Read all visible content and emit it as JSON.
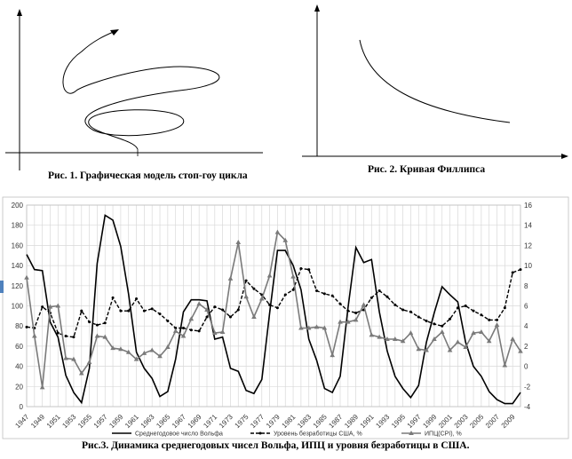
{
  "fig1": {
    "caption": "Рис. 1. Графическая модель стоп-гоу цикла"
  },
  "fig2": {
    "caption": "Рис. 2. Кривая Филлипса"
  },
  "fig3": {
    "caption": "Рис.3. Динамика среднегодовых чисел Вольфа, ИПЦ и уровня безработицы в США."
  },
  "chart_data": [
    {
      "type": "diagram",
      "title": "",
      "description_visible": "spiral curve on x/y axes"
    },
    {
      "type": "line",
      "title": "",
      "shape": "decreasing convex curve on x/y axes"
    },
    {
      "type": "line",
      "title": "",
      "x": [
        1947,
        1948,
        1949,
        1950,
        1951,
        1952,
        1953,
        1954,
        1955,
        1956,
        1957,
        1958,
        1959,
        1960,
        1961,
        1962,
        1963,
        1964,
        1965,
        1966,
        1967,
        1968,
        1969,
        1970,
        1971,
        1972,
        1973,
        1974,
        1975,
        1976,
        1977,
        1978,
        1979,
        1980,
        1981,
        1982,
        1983,
        1984,
        1985,
        1986,
        1987,
        1988,
        1989,
        1990,
        1991,
        1992,
        1993,
        1994,
        1995,
        1996,
        1997,
        1998,
        1999,
        2000,
        2001,
        2002,
        2003,
        2004,
        2005,
        2006,
        2007,
        2008,
        2009,
        2010
      ],
      "x_tick_labels": [
        "1947",
        "1949",
        "1951",
        "1953",
        "1955",
        "1957",
        "1959",
        "1961",
        "1963",
        "1965",
        "1967",
        "1969",
        "1971",
        "1973",
        "1975",
        "1977",
        "1979",
        "1981",
        "1983",
        "1985",
        "1987",
        "1989",
        "1991",
        "1993",
        "1995",
        "1997",
        "1999",
        "2001",
        "2003",
        "2005",
        "2007",
        "2009"
      ],
      "y_left": {
        "min": 0,
        "max": 200,
        "ticks": [
          "0",
          "20",
          "40",
          "60",
          "80",
          "100",
          "120",
          "140",
          "160",
          "180",
          "200"
        ]
      },
      "y_right": {
        "min": -4,
        "max": 16,
        "ticks": [
          "-4",
          "-2",
          "0",
          "2",
          "4",
          "6",
          "8",
          "10",
          "12",
          "14",
          "16"
        ]
      },
      "grid": true,
      "legend_position": "bottom",
      "series": [
        {
          "name": "Среднегодовое число Вольфа",
          "axis": "left",
          "style": "solid-black",
          "values": [
            151,
            136,
            135,
            84,
            69,
            31,
            14,
            4,
            38,
            142,
            190,
            185,
            159,
            112,
            54,
            38,
            28,
            10,
            15,
            47,
            94,
            106,
            106,
            105,
            67,
            69,
            38,
            35,
            16,
            13,
            27,
            93,
            155,
            155,
            140,
            116,
            67,
            46,
            18,
            14,
            30,
            98,
            158,
            143,
            146,
            94,
            55,
            30,
            18,
            9,
            21,
            64,
            93,
            119,
            111,
            104,
            64,
            40,
            30,
            15,
            7,
            3,
            3,
            14
          ]
        },
        {
          "name": "Уровень безработицы США, %",
          "axis": "right",
          "style": "dashed-black-dots",
          "values": [
            3.9,
            3.8,
            5.9,
            5.3,
            3.3,
            3.0,
            2.9,
            5.5,
            4.4,
            4.1,
            4.3,
            6.8,
            5.5,
            5.5,
            6.7,
            5.5,
            5.7,
            5.2,
            4.5,
            3.8,
            3.8,
            3.6,
            3.5,
            4.9,
            5.9,
            5.6,
            4.9,
            5.6,
            8.5,
            7.7,
            7.1,
            6.1,
            5.8,
            7.1,
            7.6,
            9.7,
            9.6,
            7.5,
            7.2,
            7.0,
            6.2,
            5.5,
            5.3,
            5.6,
            6.8,
            7.5,
            6.9,
            6.1,
            5.6,
            5.4,
            4.9,
            4.5,
            4.2,
            4.0,
            4.7,
            5.8,
            6.0,
            5.5,
            5.1,
            4.6,
            4.6,
            5.8,
            9.3,
            9.6
          ]
        },
        {
          "name": "ИПЦ(CPI), %",
          "axis": "right",
          "style": "gray-triangles",
          "values": [
            8.8,
            3.0,
            -2.1,
            5.9,
            6.0,
            0.8,
            0.7,
            -0.7,
            0.4,
            3.0,
            2.9,
            1.8,
            1.7,
            1.4,
            0.7,
            1.3,
            1.6,
            1.0,
            1.9,
            3.5,
            3.0,
            4.7,
            6.2,
            5.6,
            3.3,
            3.4,
            8.7,
            12.3,
            6.9,
            4.9,
            6.7,
            9.0,
            13.3,
            12.5,
            8.9,
            3.8,
            3.8,
            3.9,
            3.8,
            1.1,
            4.4,
            4.4,
            4.6,
            6.1,
            3.1,
            2.9,
            2.7,
            2.7,
            2.5,
            3.3,
            1.7,
            1.6,
            2.7,
            3.4,
            1.6,
            2.4,
            1.9,
            3.3,
            3.4,
            2.5,
            4.1,
            0.1,
            2.7,
            1.5
          ]
        }
      ]
    }
  ],
  "colors": {
    "solid": "#000000",
    "dashed": "#000000",
    "cpi": "#7a7a7a",
    "grid": "#d9d9d9",
    "axis": "#000000"
  }
}
